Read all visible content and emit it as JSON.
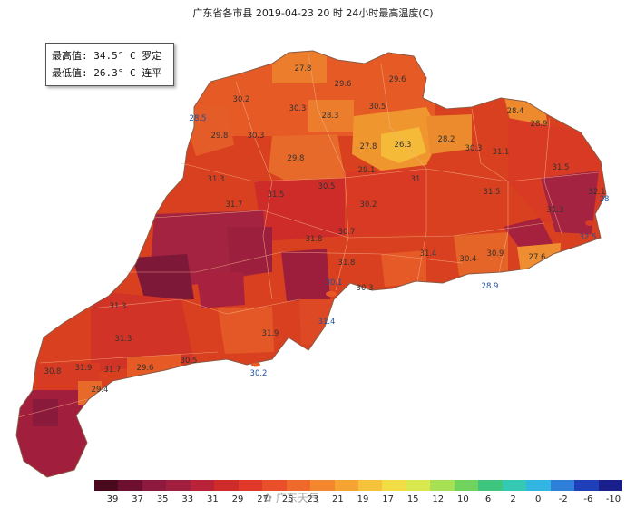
{
  "title": "广东省各市县 2019-04-23 20 时 24小时最高温度(C)",
  "stats": {
    "max_line": "最高值: 34.5° C 罗定",
    "min_line": "最低值: 26.3° C 连平"
  },
  "legend_ticks": [
    "39",
    "37",
    "35",
    "33",
    "31",
    "29",
    "27",
    "25",
    "23",
    "21",
    "19",
    "17",
    "15",
    "12",
    "10",
    "6",
    "2",
    "0",
    "-2",
    "-6",
    "-10"
  ],
  "legend_colors": [
    "#4a0a1e",
    "#6d1030",
    "#8b1a3e",
    "#a01e3e",
    "#b8233a",
    "#cf2b2b",
    "#e1382a",
    "#e84f2a",
    "#ee6a2c",
    "#f2872f",
    "#f4a433",
    "#f7c23b",
    "#f3dd45",
    "#d9e84f",
    "#a7df55",
    "#6fd35e",
    "#3fc57d",
    "#35c9b3",
    "#33b5e1",
    "#2f7fd9",
    "#1f3fb8",
    "#1a1f8c"
  ],
  "labels": [
    {
      "text": "27.8",
      "coast": false
    },
    {
      "text": "29.6",
      "coast": false
    },
    {
      "text": "29.6",
      "coast": false
    },
    {
      "text": "30.2",
      "coast": false
    },
    {
      "text": "30.3",
      "coast": false
    },
    {
      "text": "28.3",
      "coast": false
    },
    {
      "text": "30.5",
      "coast": false
    },
    {
      "text": "28.5",
      "coast": true
    },
    {
      "text": "29.8",
      "coast": false
    },
    {
      "text": "30.3",
      "coast": false
    },
    {
      "text": "27.8",
      "coast": false
    },
    {
      "text": "26.3",
      "coast": false
    },
    {
      "text": "28.2",
      "coast": false
    },
    {
      "text": "28.4",
      "coast": false
    },
    {
      "text": "28.9",
      "coast": false
    },
    {
      "text": "29.8",
      "coast": false
    },
    {
      "text": "29.1",
      "coast": false
    },
    {
      "text": "30.3",
      "coast": false
    },
    {
      "text": "31.3",
      "coast": false
    },
    {
      "text": "31.5",
      "coast": false
    },
    {
      "text": "30.5",
      "coast": false
    },
    {
      "text": "31",
      "coast": false
    },
    {
      "text": "31.5",
      "coast": false
    },
    {
      "text": "31.1",
      "coast": false
    },
    {
      "text": "31.5",
      "coast": false
    },
    {
      "text": "32.1",
      "coast": false
    },
    {
      "text": "31.7",
      "coast": false
    },
    {
      "text": "30.2",
      "coast": false
    },
    {
      "text": "31.3",
      "coast": false
    },
    {
      "text": "28",
      "coast": true
    },
    {
      "text": "32.5",
      "coast": true
    },
    {
      "text": "31.8",
      "coast": false
    },
    {
      "text": "30.7",
      "coast": false
    },
    {
      "text": "31.4",
      "coast": false
    },
    {
      "text": "30.4",
      "coast": false
    },
    {
      "text": "30.9",
      "coast": false
    },
    {
      "text": "27.6",
      "coast": false
    },
    {
      "text": "28.9",
      "coast": true
    },
    {
      "text": "31.8",
      "coast": false
    },
    {
      "text": "30.3",
      "coast": false
    },
    {
      "text": "30.1",
      "coast": true
    },
    {
      "text": "31.3",
      "coast": false
    },
    {
      "text": "31.3",
      "coast": false
    },
    {
      "text": "31.4",
      "coast": true
    },
    {
      "text": "31.9",
      "coast": false
    },
    {
      "text": "30.5",
      "coast": false
    },
    {
      "text": "29.6",
      "coast": false
    },
    {
      "text": "31.7",
      "coast": false
    },
    {
      "text": "31.9",
      "coast": false
    },
    {
      "text": "30.2",
      "coast": true
    },
    {
      "text": "29.4",
      "coast": false
    },
    {
      "text": "30.8",
      "coast": false
    }
  ]
}
